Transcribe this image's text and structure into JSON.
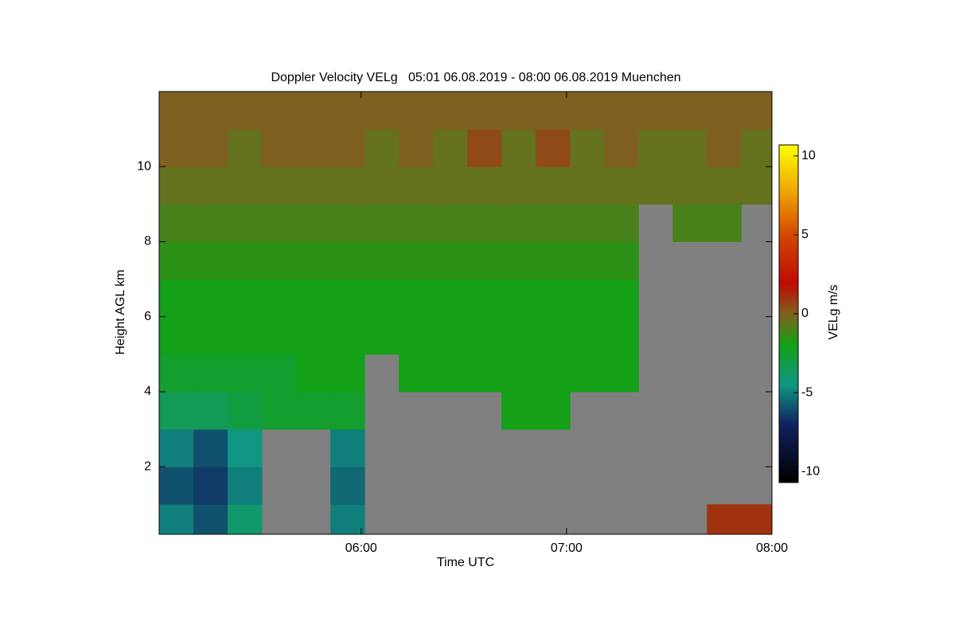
{
  "chart_data": {
    "type": "heatmap",
    "title": "Doppler Velocity VELg   05:01 06.08.2019 - 08:00 06.08.2019 Muenchen",
    "x_label": "Time UTC",
    "y_label": "Height AGL km",
    "colorbar_label": "VELg m/s",
    "xlim": [
      "05:01",
      "08:00"
    ],
    "xticks": [
      "06:00",
      "07:00",
      "08:00"
    ],
    "ylim": [
      0.2,
      12.0
    ],
    "yticks": [
      2,
      4,
      6,
      8,
      10
    ],
    "clim": [
      -10.7,
      10.7
    ],
    "cticks": [
      -10,
      -5,
      0,
      5,
      10
    ],
    "x": [
      "05:01",
      "05:11",
      "05:21",
      "05:31",
      "05:41",
      "05:51",
      "06:01",
      "06:11",
      "06:21",
      "06:31",
      "06:41",
      "06:51",
      "07:01",
      "07:11",
      "07:21",
      "07:31",
      "07:41",
      "07:51"
    ],
    "y": [
      0.2,
      1,
      2,
      3,
      4,
      5,
      6,
      7,
      8,
      9,
      10,
      11
    ],
    "z": [
      [
        -5,
        -6,
        -4,
        null,
        null,
        -5,
        null,
        null,
        null,
        null,
        null,
        null,
        null,
        null,
        null,
        null,
        1,
        1
      ],
      [
        -6,
        -6.5,
        -5,
        null,
        null,
        -5.5,
        null,
        null,
        null,
        null,
        null,
        null,
        null,
        null,
        null,
        null,
        null,
        null
      ],
      [
        -5,
        -6,
        -4.5,
        null,
        null,
        -5,
        null,
        null,
        null,
        null,
        null,
        null,
        null,
        null,
        null,
        null,
        null,
        null
      ],
      [
        -3.5,
        -3.5,
        -3,
        -2.5,
        -2.5,
        -2.5,
        null,
        null,
        null,
        null,
        -2,
        -2,
        null,
        null,
        null,
        null,
        null,
        null
      ],
      [
        -2.5,
        -2.5,
        -2.5,
        -2.5,
        -2,
        -2,
        null,
        -2,
        -2,
        -2,
        -2,
        -2,
        -2,
        -2,
        null,
        null,
        null,
        null
      ],
      [
        -2,
        -2,
        -2,
        -2,
        -2,
        -2,
        -2,
        -2,
        -2,
        -2,
        -2,
        -2,
        -2,
        -2,
        null,
        null,
        null,
        null
      ],
      [
        -2,
        -2,
        -2,
        -2,
        -2,
        -2,
        -2,
        -2,
        -2,
        -2,
        -2,
        -2,
        -2,
        -2,
        null,
        null,
        null,
        null
      ],
      [
        -1.5,
        -1.5,
        -1.5,
        -1.5,
        -1.5,
        -1.5,
        -1.5,
        -1.5,
        -1.5,
        -1.5,
        -1.5,
        -1.5,
        -1.5,
        -1.5,
        null,
        null,
        null,
        null
      ],
      [
        -1,
        -1,
        -1,
        -1,
        -1,
        -1,
        -1,
        -1,
        -1,
        -1,
        -1,
        -1,
        -1,
        -1,
        null,
        -1,
        -1,
        null
      ],
      [
        -0.5,
        -0.5,
        -0.5,
        -0.5,
        -0.5,
        -0.5,
        -0.5,
        -0.5,
        -0.5,
        -0.5,
        -0.5,
        -0.5,
        -0.5,
        -0.5,
        -0.5,
        -0.5,
        -0.5,
        -0.5
      ],
      [
        0,
        0,
        -0.5,
        0,
        0,
        0,
        -0.5,
        0,
        -0.5,
        0.5,
        -0.5,
        0.5,
        -0.5,
        0,
        -0.5,
        -0.5,
        0,
        -0.5
      ],
      [
        0,
        0,
        0,
        0,
        0,
        0,
        0,
        0,
        0,
        0,
        0,
        0,
        0,
        0,
        0,
        0,
        0,
        0
      ]
    ],
    "no_data_color": "#808080"
  }
}
